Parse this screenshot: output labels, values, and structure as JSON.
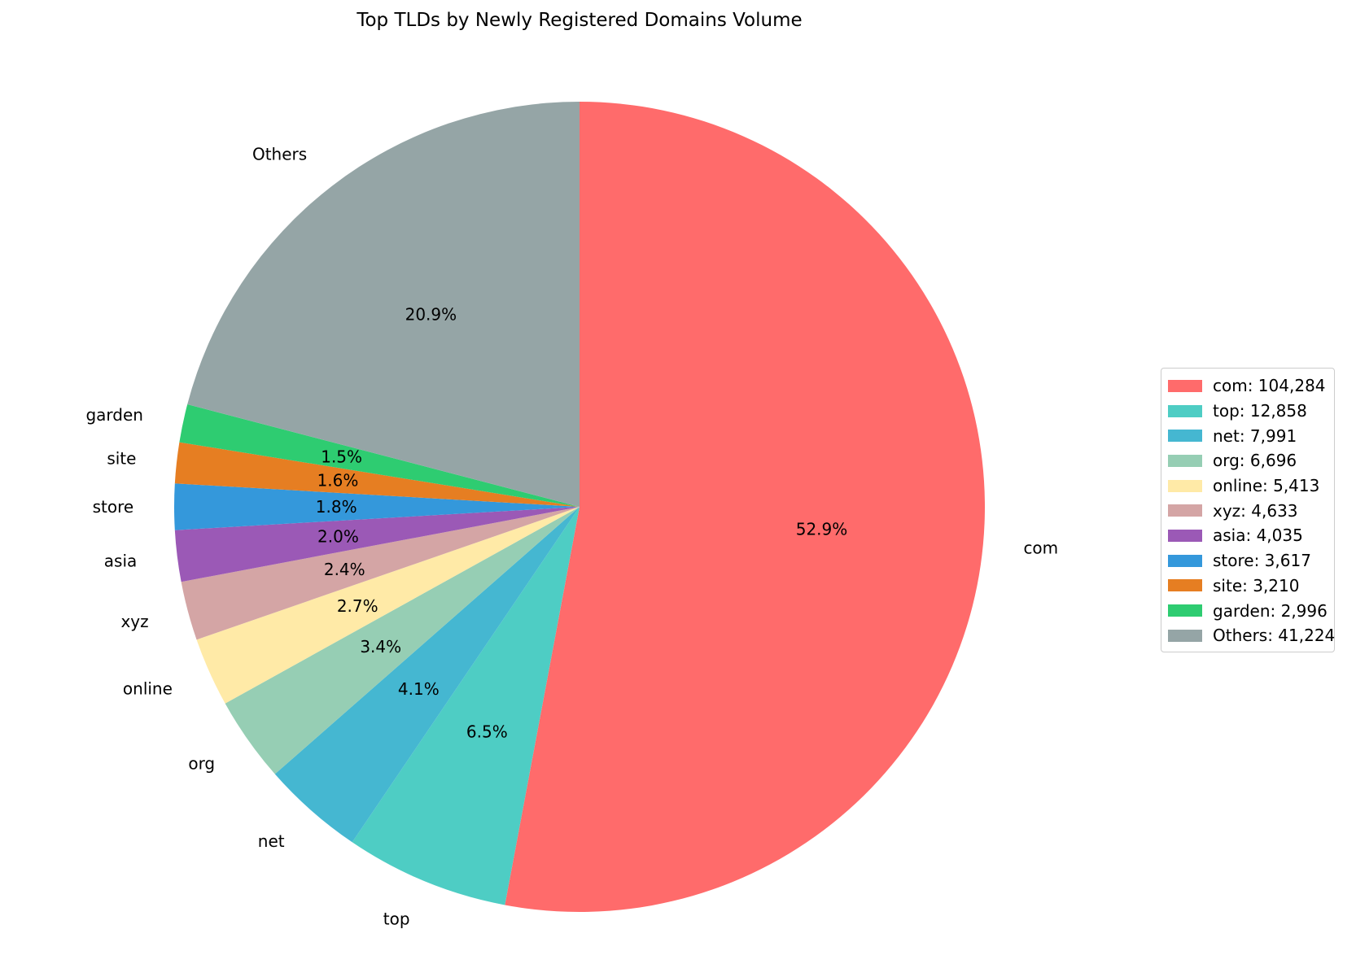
{
  "chart_data": {
    "type": "pie",
    "title": "Top TLDs by Newly Registered Domains Volume",
    "start_angle_deg": 90,
    "direction": "clockwise",
    "slices": [
      {
        "label": "com",
        "value": 104284,
        "pct_label": "52.9%",
        "legend_label": "com: 104,284",
        "color": "#ff6b6b"
      },
      {
        "label": "top",
        "value": 12858,
        "pct_label": "6.5%",
        "legend_label": "top: 12,858",
        "color": "#4ecdc4"
      },
      {
        "label": "net",
        "value": 7991,
        "pct_label": "4.1%",
        "legend_label": "net: 7,991",
        "color": "#45b7d1"
      },
      {
        "label": "org",
        "value": 6696,
        "pct_label": "3.4%",
        "legend_label": "org: 6,696",
        "color": "#96ceb4"
      },
      {
        "label": "online",
        "value": 5413,
        "pct_label": "2.7%",
        "legend_label": "online: 5,413",
        "color": "#ffeaa7"
      },
      {
        "label": "xyz",
        "value": 4633,
        "pct_label": "2.4%",
        "legend_label": "xyz: 4,633",
        "color": "#d4a5a5"
      },
      {
        "label": "asia",
        "value": 4035,
        "pct_label": "2.0%",
        "legend_label": "asia: 4,035",
        "color": "#9b59b6"
      },
      {
        "label": "store",
        "value": 3617,
        "pct_label": "1.8%",
        "legend_label": "store: 3,617",
        "color": "#3498db"
      },
      {
        "label": "site",
        "value": 3210,
        "pct_label": "1.6%",
        "legend_label": "site: 3,210",
        "color": "#e67e22"
      },
      {
        "label": "garden",
        "value": 2996,
        "pct_label": "1.5%",
        "legend_label": "garden: 2,996",
        "color": "#2ecc71"
      },
      {
        "label": "Others",
        "value": 41224,
        "pct_label": "20.9%",
        "legend_label": "Others: 41,224",
        "color": "#95a5a6"
      }
    ],
    "legend_position": "center-right"
  }
}
